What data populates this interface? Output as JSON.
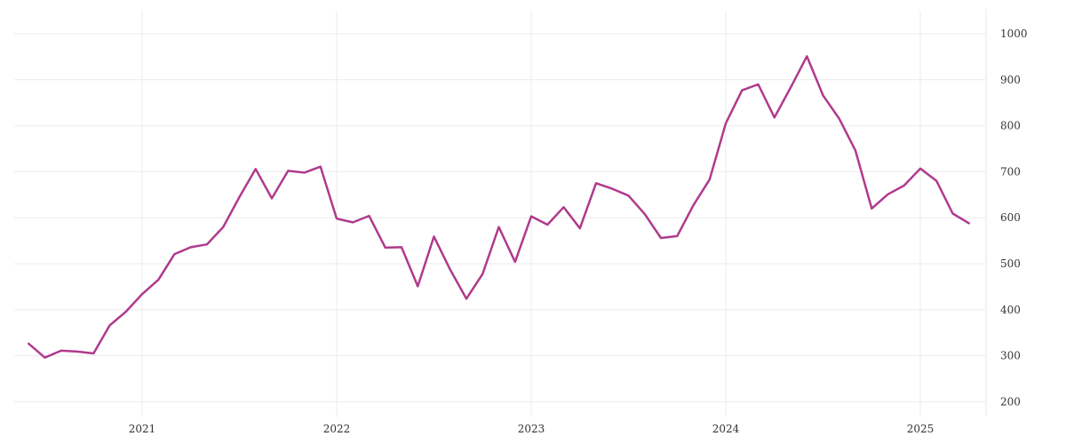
{
  "chart_data": {
    "type": "line",
    "title": "",
    "xlabel": "",
    "ylabel": "",
    "x_tick_labels": [
      "2021",
      "2022",
      "2023",
      "2024",
      "2025"
    ],
    "y_tick_labels": [
      "200",
      "300",
      "400",
      "500",
      "600",
      "700",
      "800",
      "900",
      "1000"
    ],
    "ylim": [
      180,
      1050
    ],
    "xlim": [
      "2020-05-01",
      "2025-05-01"
    ],
    "grid": true,
    "y_axis_side": "right",
    "line_color": "#b03a8c",
    "series": [
      {
        "x": [
          "2020-06",
          "2020-07",
          "2020-08",
          "2020-09",
          "2020-10",
          "2020-11",
          "2020-12",
          "2021-01",
          "2021-02",
          "2021-03",
          "2021-04",
          "2021-05",
          "2021-06",
          "2021-07",
          "2021-08",
          "2021-09",
          "2021-10",
          "2021-11",
          "2021-12",
          "2022-01",
          "2022-02",
          "2022-03",
          "2022-04",
          "2022-05",
          "2022-06",
          "2022-07",
          "2022-08",
          "2022-09",
          "2022-10",
          "2022-11",
          "2022-12",
          "2023-01",
          "2023-02",
          "2023-03",
          "2023-04",
          "2023-05",
          "2023-06",
          "2023-07",
          "2023-08",
          "2023-09",
          "2023-10",
          "2023-11",
          "2023-12",
          "2024-01",
          "2024-02",
          "2024-03",
          "2024-04",
          "2024-05",
          "2024-06",
          "2024-07",
          "2024-08",
          "2024-09",
          "2024-10",
          "2024-11",
          "2024-12",
          "2025-01",
          "2025-02",
          "2025-03",
          "2025-04"
        ],
        "values": [
          326,
          296,
          311,
          309,
          305,
          366,
          396,
          434,
          465,
          521,
          536,
          542,
          580,
          645,
          706,
          642,
          702,
          698,
          711,
          598,
          590,
          604,
          535,
          536,
          451,
          559,
          487,
          424,
          478,
          580,
          504,
          603,
          585,
          623,
          577,
          675,
          663,
          648,
          608,
          556,
          560,
          627,
          683,
          805,
          877,
          890,
          818,
          883,
          951,
          866,
          815,
          746,
          620,
          651,
          670,
          707,
          680,
          609,
          588
        ]
      }
    ]
  }
}
